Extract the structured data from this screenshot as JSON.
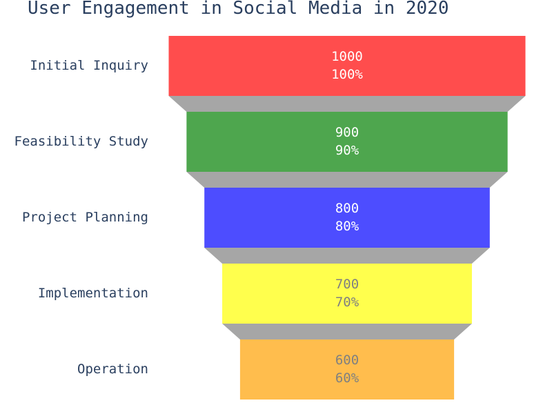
{
  "chart_data": {
    "type": "funnel",
    "title": "User Engagement in Social Media in 2020",
    "categories": [
      "Initial Inquiry",
      "Feasibility Study",
      "Project Planning",
      "Implementation",
      "Operation"
    ],
    "values": [
      1000,
      900,
      800,
      700,
      600
    ],
    "percent_labels": [
      "100%",
      "90%",
      "80%",
      "70%",
      "60%"
    ],
    "colors": [
      "#ff4d4d",
      "#4ea64e",
      "#4d4dff",
      "#ffff4d",
      "#ffbd4d"
    ],
    "text_colors": [
      "#ffffff",
      "#ffffff",
      "#ffffff",
      "#808080",
      "#808080"
    ],
    "connector_color": "#a6a6a6",
    "legend": "none",
    "grid": false
  }
}
